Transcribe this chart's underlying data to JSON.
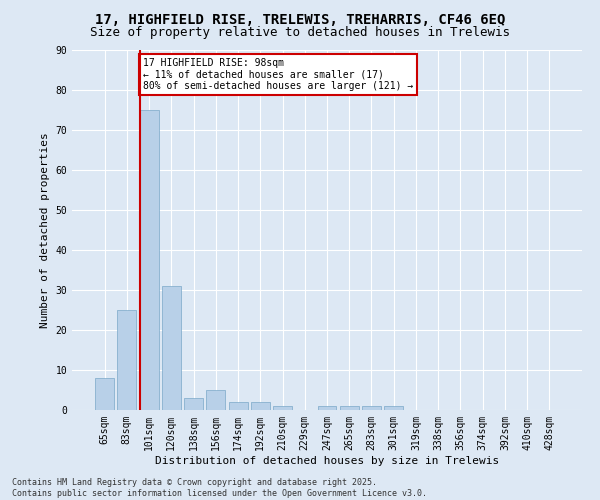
{
  "title1": "17, HIGHFIELD RISE, TRELEWIS, TREHARRIS, CF46 6EQ",
  "title2": "Size of property relative to detached houses in Trelewis",
  "xlabel": "Distribution of detached houses by size in Trelewis",
  "ylabel": "Number of detached properties",
  "categories": [
    "65sqm",
    "83sqm",
    "101sqm",
    "120sqm",
    "138sqm",
    "156sqm",
    "174sqm",
    "192sqm",
    "210sqm",
    "229sqm",
    "247sqm",
    "265sqm",
    "283sqm",
    "301sqm",
    "319sqm",
    "338sqm",
    "356sqm",
    "374sqm",
    "392sqm",
    "410sqm",
    "428sqm"
  ],
  "values": [
    8,
    25,
    75,
    31,
    3,
    5,
    2,
    2,
    1,
    0,
    1,
    1,
    1,
    1,
    0,
    0,
    0,
    0,
    0,
    0,
    0
  ],
  "bar_color": "#b8d0e8",
  "bar_edge_color": "#7aa8c8",
  "vline_color": "#cc0000",
  "annotation_text": "17 HIGHFIELD RISE: 98sqm\n← 11% of detached houses are smaller (17)\n80% of semi-detached houses are larger (121) →",
  "annotation_box_color": "#ffffff",
  "annotation_box_edge": "#cc0000",
  "background_color": "#dde8f4",
  "grid_color": "#ffffff",
  "footer": "Contains HM Land Registry data © Crown copyright and database right 2025.\nContains public sector information licensed under the Open Government Licence v3.0.",
  "ylim": [
    0,
    90
  ],
  "title_fontsize": 10,
  "subtitle_fontsize": 9,
  "tick_fontsize": 7,
  "ylabel_fontsize": 8,
  "xlabel_fontsize": 8,
  "footer_fontsize": 6
}
